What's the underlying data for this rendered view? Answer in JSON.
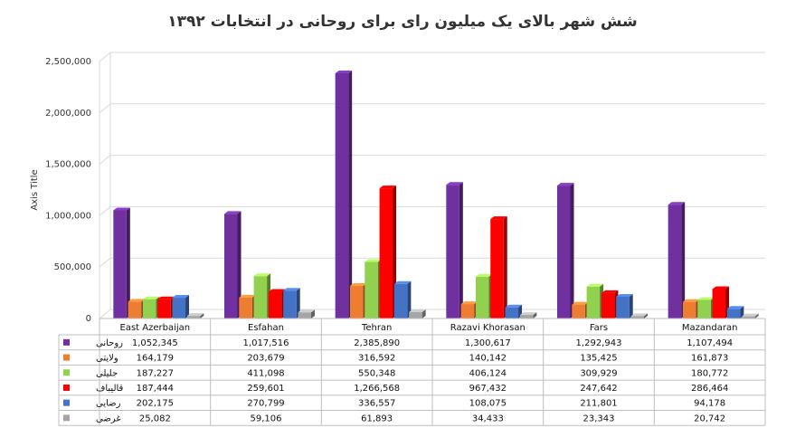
{
  "chart_data": {
    "type": "bar",
    "title": "شش شهر بالای یک میلیون رای برای روحانی در انتخابات ۱۳۹۲",
    "xlabel": "",
    "ylabel": "Axis Title",
    "ylim": [
      0,
      2500000
    ],
    "yticks": [
      "0",
      "500,000",
      "1,000,000",
      "1,500,000",
      "2,000,000",
      "2,500,000"
    ],
    "categories": [
      "East Azerbaijan",
      "Esfahan",
      "Tehran",
      "Razavi Khorasan",
      "Fars",
      "Mazandaran"
    ],
    "series": [
      {
        "name": "روحانی",
        "color": "#7030A0",
        "values": [
          1052345,
          1017516,
          2385890,
          1300617,
          1292943,
          1107494
        ],
        "labels": [
          "1,052,345",
          "1,017,516",
          "2,385,890",
          "1,300,617",
          "1,292,943",
          "1,107,494"
        ]
      },
      {
        "name": "ولایتی",
        "color": "#ED7D31",
        "values": [
          164179,
          203679,
          316592,
          140142,
          135425,
          161873
        ],
        "labels": [
          "164,179",
          "203,679",
          "316,592",
          "140,142",
          "135,425",
          "161,873"
        ]
      },
      {
        "name": "جلیلی",
        "color": "#92D050",
        "values": [
          187227,
          411098,
          550348,
          406124,
          309929,
          180772
        ],
        "labels": [
          "187,227",
          "411,098",
          "550,348",
          "406,124",
          "309,929",
          "180,772"
        ]
      },
      {
        "name": "قالیباف",
        "color": "#FF0000",
        "values": [
          187444,
          259601,
          1266568,
          967432,
          247642,
          286464
        ],
        "labels": [
          "187,444",
          "259,601",
          "1,266,568",
          "967,432",
          "247,642",
          "286,464"
        ]
      },
      {
        "name": "رضایی",
        "color": "#4472C4",
        "values": [
          202175,
          270799,
          336557,
          108075,
          211801,
          94178
        ],
        "labels": [
          "202,175",
          "270,799",
          "336,557",
          "108,075",
          "211,801",
          "94,178"
        ]
      },
      {
        "name": "غرضی",
        "color": "#A5A5A5",
        "values": [
          25082,
          59106,
          61893,
          34433,
          23343,
          20742
        ],
        "labels": [
          "25,082",
          "59,106",
          "61,893",
          "34,433",
          "23,343",
          "20,742"
        ]
      }
    ],
    "grid": true,
    "legend": "data-table"
  }
}
